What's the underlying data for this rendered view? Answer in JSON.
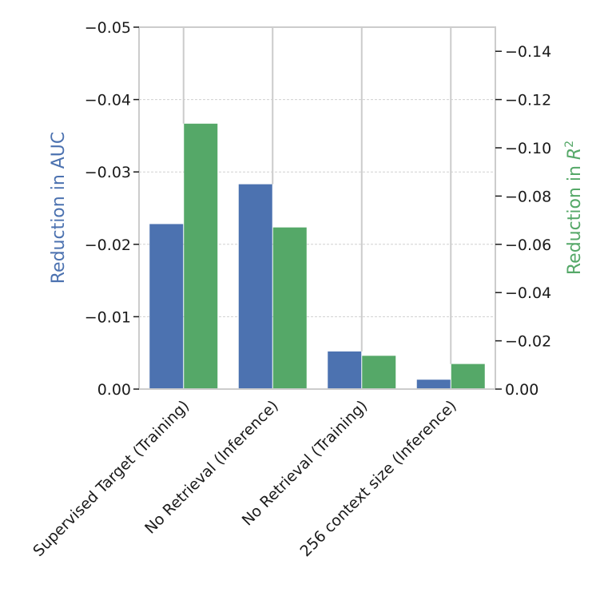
{
  "chart_data": {
    "type": "bar",
    "categories": [
      "Supervised Target (Training)",
      "No Retrieval (Inference)",
      "No Retrieval (Training)",
      "256 context size (Inference)"
    ],
    "series": [
      {
        "name": "Reduction in AUC",
        "axis": "left",
        "color": "#4c72b0",
        "values": [
          -0.0228,
          -0.0283,
          -0.0052,
          -0.0013
        ]
      },
      {
        "name": "Reduction in R²",
        "axis": "right",
        "color": "#55a868",
        "values": [
          -0.11,
          -0.067,
          -0.0138,
          -0.0104
        ]
      }
    ],
    "ylabel_left": "Reduction in AUC",
    "ylabel_right_text": "Reduction in ",
    "ylabel_right_symbol": "R",
    "ylabel_right_superscript": "2",
    "ylim_left": [
      0,
      -0.05
    ],
    "ylim_right": [
      0,
      -0.15
    ],
    "yticks_left": [
      0,
      -0.01,
      -0.02,
      -0.03,
      -0.04,
      -0.05
    ],
    "yticks_left_labels": [
      "0.00",
      "−0.01",
      "−0.02",
      "−0.03",
      "−0.04",
      "−0.05"
    ],
    "yticks_right": [
      0,
      -0.02,
      -0.04,
      -0.06,
      -0.08,
      -0.1,
      -0.12,
      -0.14
    ],
    "yticks_right_labels": [
      "0.00",
      "−0.02",
      "−0.04",
      "−0.06",
      "−0.08",
      "−0.10",
      "−0.12",
      "−0.14"
    ],
    "grid": true,
    "left_axis_color": "#4c72b0",
    "right_axis_color": "#55a868"
  }
}
